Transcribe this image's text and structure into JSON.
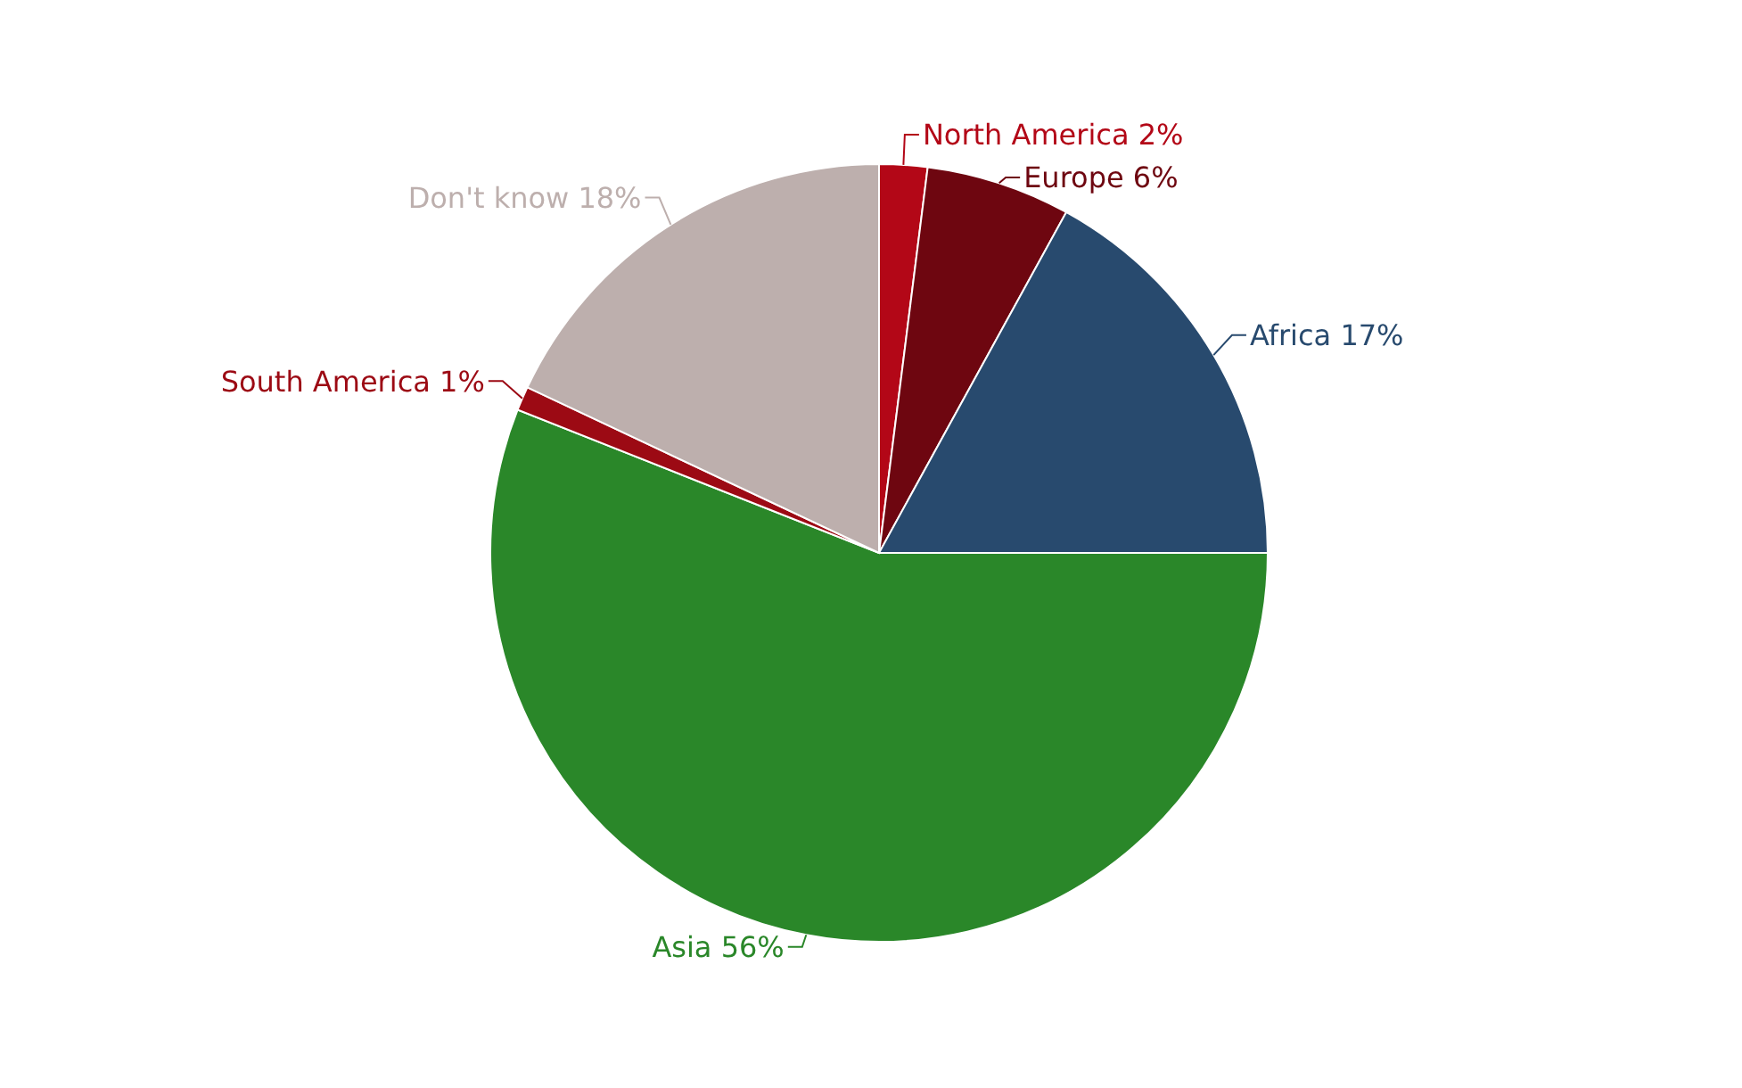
{
  "chart_data": {
    "type": "pie",
    "categories": [
      "North America",
      "Europe",
      "Africa",
      "Asia",
      "South America",
      "Don't know"
    ],
    "values": [
      2,
      6,
      17,
      56,
      1,
      18
    ],
    "value_labels": [
      "2%",
      "6%",
      "17%",
      "56%",
      "1%",
      "18%"
    ],
    "colors": [
      "#b30717",
      "#6e0610",
      "#284a6e",
      "#2a8729",
      "#9c0a14",
      "#bdafad"
    ]
  }
}
